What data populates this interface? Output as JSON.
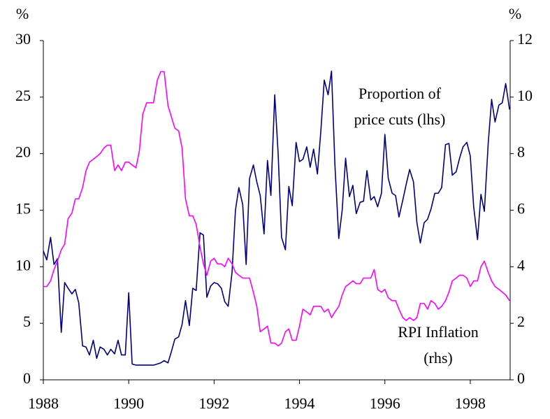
{
  "chart_data": {
    "type": "line",
    "ylabel": "%",
    "y2label": "%",
    "xlim": [
      1988,
      1999
    ],
    "xticks": [
      1988,
      1990,
      1992,
      1994,
      1996,
      1998
    ],
    "ylim": [
      0,
      30
    ],
    "yticks": [
      0,
      5,
      10,
      15,
      20,
      25,
      30
    ],
    "y2lim": [
      0,
      12
    ],
    "y2ticks": [
      0,
      2,
      4,
      6,
      8,
      10,
      12
    ],
    "grid": false,
    "annotations": [
      {
        "lines": [
          "Proportion of",
          "price cuts (lhs)"
        ]
      },
      {
        "lines": [
          "RPI Inflation",
          "(rhs)"
        ]
      }
    ],
    "x": [
      1988,
      1988.08,
      1988.17,
      1988.25,
      1988.33,
      1988.42,
      1988.5,
      1988.58,
      1988.67,
      1988.75,
      1988.83,
      1988.92,
      1989,
      1989.08,
      1989.17,
      1989.25,
      1989.33,
      1989.42,
      1989.5,
      1989.58,
      1989.67,
      1989.75,
      1989.83,
      1989.92,
      1990,
      1990.08,
      1990.17,
      1990.25,
      1990.33,
      1990.42,
      1990.5,
      1990.58,
      1990.67,
      1990.75,
      1990.83,
      1990.92,
      1991,
      1991.08,
      1991.17,
      1991.25,
      1991.33,
      1991.42,
      1991.5,
      1991.58,
      1991.67,
      1991.75,
      1991.83,
      1991.92,
      1992,
      1992.08,
      1992.17,
      1992.25,
      1992.33,
      1992.42,
      1992.5,
      1992.58,
      1992.67,
      1992.75,
      1992.83,
      1992.92,
      1993,
      1993.08,
      1993.17,
      1993.25,
      1993.33,
      1993.42,
      1993.5,
      1993.58,
      1993.67,
      1993.75,
      1993.83,
      1993.92,
      1994,
      1994.08,
      1994.17,
      1994.25,
      1994.33,
      1994.42,
      1994.5,
      1994.58,
      1994.67,
      1994.75,
      1994.83,
      1994.92,
      1995,
      1995.08,
      1995.17,
      1995.25,
      1995.33,
      1995.42,
      1995.5,
      1995.58,
      1995.67,
      1995.75,
      1995.83,
      1995.92,
      1996,
      1996.08,
      1996.17,
      1996.25,
      1996.33,
      1996.42,
      1996.5,
      1996.58,
      1996.67,
      1996.75,
      1996.83,
      1996.92,
      1997,
      1997.08,
      1997.17,
      1997.25,
      1997.33,
      1997.42,
      1997.5,
      1997.58,
      1997.67,
      1997.75,
      1997.83,
      1997.92,
      1998,
      1998.08,
      1998.17,
      1998.25,
      1998.33,
      1998.42,
      1998.5,
      1998.58,
      1998.67,
      1998.75,
      1998.83,
      1998.92
    ],
    "series": [
      {
        "color": "#000080",
        "axis": "y",
        "values": [
          11.4,
          10.6,
          12.6,
          10.2,
          10.7,
          4.2,
          8.6,
          8.1,
          7.6,
          8.0,
          6.8,
          3.0,
          2.9,
          2.2,
          3.5,
          1.9,
          2.9,
          2.7,
          2.2,
          2.7,
          2.3,
          3.5,
          2.2,
          2.2,
          7.7,
          1.4,
          1.3,
          1.3,
          1.3,
          1.3,
          1.3,
          1.3,
          1.4,
          1.5,
          1.7,
          1.5,
          2.5,
          3.6,
          3.8,
          4.9,
          7.0,
          4.8,
          8.1,
          7.9,
          13.0,
          12.8,
          7.3,
          8.3,
          8.6,
          8.5,
          8.1,
          6.9,
          6.5,
          9.5,
          15.0,
          17.0,
          15.5,
          10.2,
          17.8,
          19.0,
          17.5,
          16.3,
          12.9,
          19.4,
          16.3,
          25.2,
          20.0,
          12.6,
          11.5,
          17.1,
          15.4,
          21.0,
          19.3,
          19.5,
          20.6,
          18.8,
          20.4,
          18.2,
          22.0,
          26.5,
          25.2,
          27.3,
          19.0,
          12.5,
          15.0,
          19.6,
          16.2,
          17.2,
          14.7,
          15.7,
          15.8,
          18.5,
          15.9,
          16.2,
          15.3,
          16.5,
          21.7,
          17.8,
          16.5,
          16.3,
          14.4,
          15.9,
          17.3,
          18.6,
          17.5,
          13.9,
          12.1,
          13.9,
          14.2,
          15.1,
          16.5,
          16.5,
          17.0,
          20.8,
          20.9,
          18.1,
          18.4,
          19.6,
          20.6,
          21.0,
          19.8,
          15.3,
          12.4,
          16.4,
          14.9,
          20.9,
          24.8,
          22.8,
          24.3,
          24.5,
          26.2,
          23.9
        ]
      },
      {
        "color": "#ff00ff",
        "axis": "y2",
        "values": [
          3.3,
          3.3,
          3.5,
          3.9,
          4.2,
          4.6,
          4.8,
          5.7,
          5.9,
          6.4,
          6.4,
          6.8,
          7.4,
          7.7,
          7.8,
          7.9,
          8.0,
          8.2,
          8.3,
          8.3,
          7.4,
          7.6,
          7.4,
          7.7,
          7.7,
          7.6,
          7.5,
          8.1,
          9.4,
          9.8,
          9.8,
          9.8,
          10.6,
          10.9,
          10.9,
          9.7,
          9.3,
          8.9,
          8.8,
          8.2,
          6.4,
          5.8,
          5.8,
          5.5,
          4.7,
          4.1,
          3.7,
          4.2,
          4.3,
          4.1,
          4.1,
          4.0,
          4.3,
          4.1,
          3.8,
          3.7,
          3.6,
          3.6,
          3.6,
          3.1,
          2.6,
          1.7,
          1.8,
          1.9,
          1.3,
          1.3,
          1.2,
          1.3,
          1.7,
          1.8,
          1.4,
          1.4,
          1.9,
          2.5,
          2.4,
          2.3,
          2.6,
          2.6,
          2.6,
          2.4,
          2.5,
          2.2,
          2.4,
          2.6,
          3.0,
          3.3,
          3.4,
          3.5,
          3.4,
          3.4,
          3.6,
          3.6,
          3.6,
          3.9,
          3.2,
          3.1,
          3.2,
          2.9,
          2.8,
          2.8,
          2.5,
          2.2,
          2.1,
          2.2,
          2.1,
          2.2,
          2.7,
          2.7,
          2.5,
          2.8,
          2.7,
          2.5,
          2.6,
          2.8,
          3.1,
          3.5,
          3.6,
          3.7,
          3.7,
          3.6,
          3.3,
          3.5,
          3.5,
          4.0,
          4.2,
          3.8,
          3.5,
          3.3,
          3.2,
          3.1,
          3.0,
          2.8
        ]
      }
    ]
  }
}
